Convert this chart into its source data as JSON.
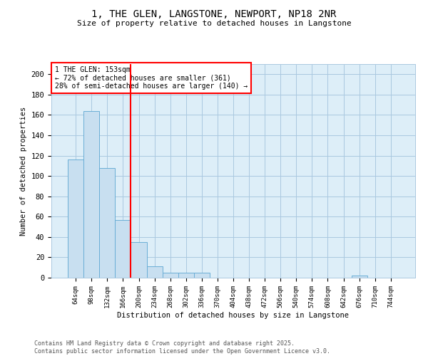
{
  "title": "1, THE GLEN, LANGSTONE, NEWPORT, NP18 2NR",
  "subtitle": "Size of property relative to detached houses in Langstone",
  "xlabel": "Distribution of detached houses by size in Langstone",
  "ylabel": "Number of detached properties",
  "bin_labels": [
    "64sqm",
    "98sqm",
    "132sqm",
    "166sqm",
    "200sqm",
    "234sqm",
    "268sqm",
    "302sqm",
    "336sqm",
    "370sqm",
    "404sqm",
    "438sqm",
    "472sqm",
    "506sqm",
    "540sqm",
    "574sqm",
    "608sqm",
    "642sqm",
    "676sqm",
    "710sqm",
    "744sqm"
  ],
  "bar_values": [
    116,
    164,
    108,
    57,
    35,
    11,
    5,
    5,
    5,
    0,
    0,
    0,
    0,
    0,
    0,
    0,
    0,
    0,
    2,
    0,
    0
  ],
  "bar_color": "#c8dff0",
  "bar_edge_color": "#6aaed6",
  "bg_color": "#ddeef8",
  "grid_color": "#aac8e0",
  "vline_color": "red",
  "vline_x_index": 3.5,
  "annotation_line1": "1 THE GLEN: 153sqm",
  "annotation_line2": "← 72% of detached houses are smaller (361)",
  "annotation_line3": "28% of semi-detached houses are larger (140) →",
  "footnote": "Contains HM Land Registry data © Crown copyright and database right 2025.\nContains public sector information licensed under the Open Government Licence v3.0.",
  "ylim": [
    0,
    210
  ],
  "yticks": [
    0,
    20,
    40,
    60,
    80,
    100,
    120,
    140,
    160,
    180,
    200
  ]
}
